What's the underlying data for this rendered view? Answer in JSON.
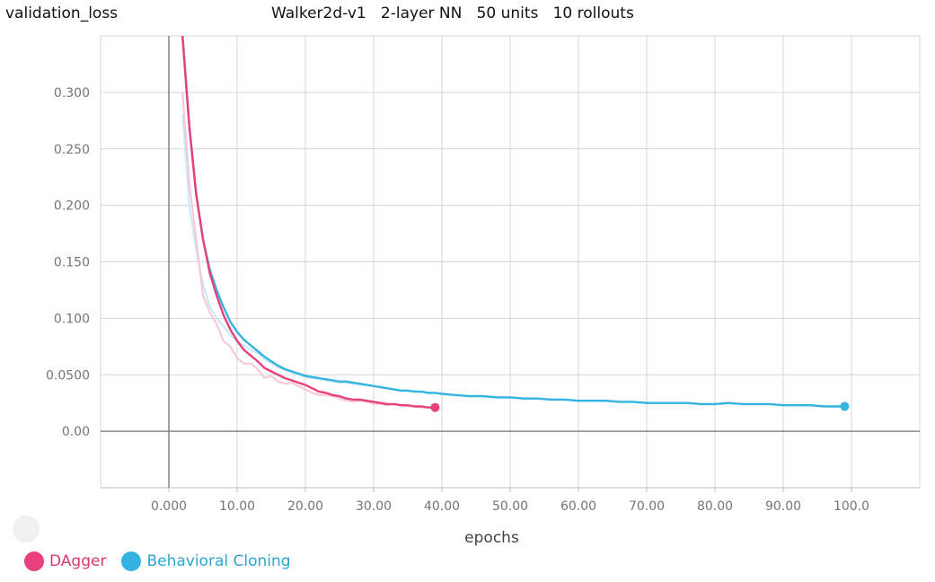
{
  "header": {
    "metric": "validation_loss",
    "title": "Walker2d-v1   2-layer NN   50 units   10 rollouts"
  },
  "chart_data": {
    "type": "line",
    "title": "Walker2d-v1   2-layer NN   50 units   10 rollouts",
    "ylabel": "validation_loss",
    "xlabel": "epochs",
    "xlim": [
      -10,
      110
    ],
    "ylim": [
      -0.05,
      0.35
    ],
    "xticks": [
      0,
      10,
      20,
      30,
      40,
      50,
      60,
      70,
      80,
      90,
      100
    ],
    "xtick_labels": [
      "0.000",
      "10.00",
      "20.00",
      "30.00",
      "40.00",
      "50.00",
      "60.00",
      "70.00",
      "80.00",
      "90.00",
      "100.0"
    ],
    "yticks": [
      0.0,
      0.05,
      0.1,
      0.15,
      0.2,
      0.25,
      0.3
    ],
    "ytick_labels": [
      "0.00",
      "0.0500",
      "0.100",
      "0.150",
      "0.200",
      "0.250",
      "0.300"
    ],
    "grid": true,
    "legend_position": "bottom-left",
    "series": [
      {
        "name": "DAgger",
        "color": "#e8407c",
        "raw_color": "#f7c5d8",
        "x": [
          2,
          3,
          4,
          5,
          6,
          7,
          8,
          9,
          10,
          11,
          12,
          13,
          14,
          15,
          16,
          17,
          18,
          19,
          20,
          21,
          22,
          23,
          24,
          25,
          26,
          27,
          28,
          29,
          30,
          31,
          32,
          33,
          34,
          35,
          36,
          37,
          38,
          39
        ],
        "values": [
          0.35,
          0.27,
          0.21,
          0.17,
          0.14,
          0.12,
          0.103,
          0.09,
          0.08,
          0.072,
          0.067,
          0.062,
          0.056,
          0.053,
          0.05,
          0.047,
          0.045,
          0.043,
          0.041,
          0.038,
          0.035,
          0.034,
          0.032,
          0.031,
          0.029,
          0.028,
          0.028,
          0.027,
          0.026,
          0.025,
          0.024,
          0.024,
          0.023,
          0.023,
          0.022,
          0.022,
          0.021,
          0.021
        ],
        "raw_values": [
          0.3,
          0.22,
          0.17,
          0.12,
          0.105,
          0.095,
          0.08,
          0.075,
          0.065,
          0.06,
          0.06,
          0.055,
          0.047,
          0.049,
          0.044,
          0.042,
          0.043,
          0.04,
          0.037,
          0.034,
          0.032,
          0.032,
          0.031,
          0.029,
          0.027,
          0.026,
          0.027,
          0.026,
          0.024,
          0.024,
          0.023,
          0.024,
          0.023,
          0.022,
          0.022,
          0.021,
          0.021,
          0.02
        ]
      },
      {
        "name": "Behavioral Cloning",
        "color": "#33b4e0",
        "raw_color": "#c8e9f4",
        "x": [
          2,
          3,
          4,
          5,
          6,
          7,
          8,
          9,
          10,
          11,
          12,
          13,
          14,
          15,
          16,
          17,
          18,
          19,
          20,
          21,
          22,
          23,
          24,
          25,
          26,
          27,
          28,
          29,
          30,
          31,
          32,
          33,
          34,
          35,
          36,
          37,
          38,
          39,
          40,
          42,
          44,
          46,
          48,
          50,
          52,
          54,
          56,
          58,
          60,
          62,
          64,
          66,
          68,
          70,
          72,
          74,
          76,
          78,
          80,
          82,
          84,
          86,
          88,
          90,
          92,
          94,
          96,
          98,
          99
        ],
        "values": [
          0.35,
          0.27,
          0.21,
          0.17,
          0.143,
          0.125,
          0.11,
          0.097,
          0.088,
          0.081,
          0.076,
          0.071,
          0.066,
          0.062,
          0.058,
          0.055,
          0.053,
          0.051,
          0.049,
          0.048,
          0.047,
          0.046,
          0.045,
          0.044,
          0.044,
          0.043,
          0.042,
          0.041,
          0.04,
          0.039,
          0.038,
          0.037,
          0.036,
          0.036,
          0.035,
          0.035,
          0.034,
          0.034,
          0.033,
          0.032,
          0.031,
          0.031,
          0.03,
          0.03,
          0.029,
          0.029,
          0.028,
          0.028,
          0.027,
          0.027,
          0.027,
          0.026,
          0.026,
          0.025,
          0.025,
          0.025,
          0.025,
          0.024,
          0.024,
          0.025,
          0.024,
          0.024,
          0.024,
          0.023,
          0.023,
          0.023,
          0.022,
          0.022,
          0.022
        ],
        "raw_values": [
          0.28,
          0.2,
          0.16,
          0.13,
          0.11,
          0.1,
          0.093,
          0.085,
          0.08,
          0.076,
          0.072,
          0.069,
          0.064,
          0.06,
          0.057,
          0.054,
          0.052,
          0.05,
          0.048,
          0.047,
          0.046,
          0.045,
          0.044,
          0.043,
          0.043,
          0.042,
          0.041,
          0.041,
          0.04,
          0.039,
          0.038,
          0.037,
          0.036,
          0.036,
          0.035,
          0.035,
          0.034,
          0.034,
          0.033,
          0.032,
          0.031,
          0.031,
          0.03,
          0.03,
          0.029,
          0.029,
          0.028,
          0.028,
          0.027,
          0.027,
          0.027,
          0.026,
          0.026,
          0.025,
          0.025,
          0.025,
          0.025,
          0.024,
          0.024,
          0.025,
          0.024,
          0.024,
          0.024,
          0.023,
          0.023,
          0.023,
          0.022,
          0.022,
          0.022
        ]
      }
    ]
  },
  "legend": {
    "items": [
      {
        "label": "DAgger",
        "color": "#e8407c"
      },
      {
        "label": "Behavioral Cloning",
        "color": "#33b4e0"
      }
    ]
  }
}
